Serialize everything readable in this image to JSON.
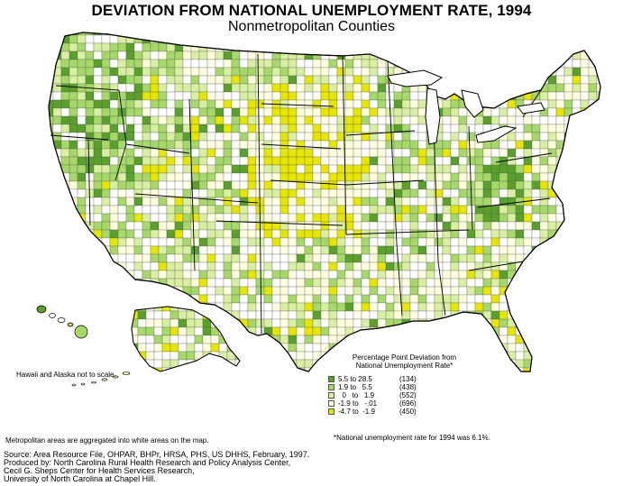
{
  "title": "DEVIATION FROM NATIONAL UNEMPLOYMENT RATE, 1994",
  "subtitle": "Nonmetropolitan Counties",
  "notes": {
    "scale": "Hawaii and Alaska not to scale.",
    "metro": "Metropolitan areas are aggregated into white areas on the map.",
    "national_rate": "*National unemployment rate for 1994 was 6.1%."
  },
  "legend": {
    "title_line1": "Percentage Point Deviation from",
    "title_line2": "National Unemployment Rate*",
    "classes": [
      {
        "range": "5.5 to 28.5",
        "count": "(134)",
        "color": "#5aa02c"
      },
      {
        "range": "1.9 to   5.5",
        "count": "(438)",
        "color": "#a6d96a"
      },
      {
        "range": "  0   to   1.9",
        "count": "(552)",
        "color": "#d9f0a3"
      },
      {
        "range": "-1.9 to   -.01",
        "count": "(696)",
        "color": "#ffffe0"
      },
      {
        "range": "-4.7 to  -1.9",
        "count": "(450)",
        "color": "#e6e600"
      }
    ]
  },
  "source": {
    "line1": "Source: Area Resource File, OHPAR, BHPr, HRSA, PHS, US DHHS, February, 1997.",
    "line2": "Produced by: North Carolina Rural Health Research and Policy Analysis Center,",
    "line3": "Cecil G. Sheps Center for Health Services Research,",
    "line4": "University of North Carolina at Chapel Hill."
  }
}
